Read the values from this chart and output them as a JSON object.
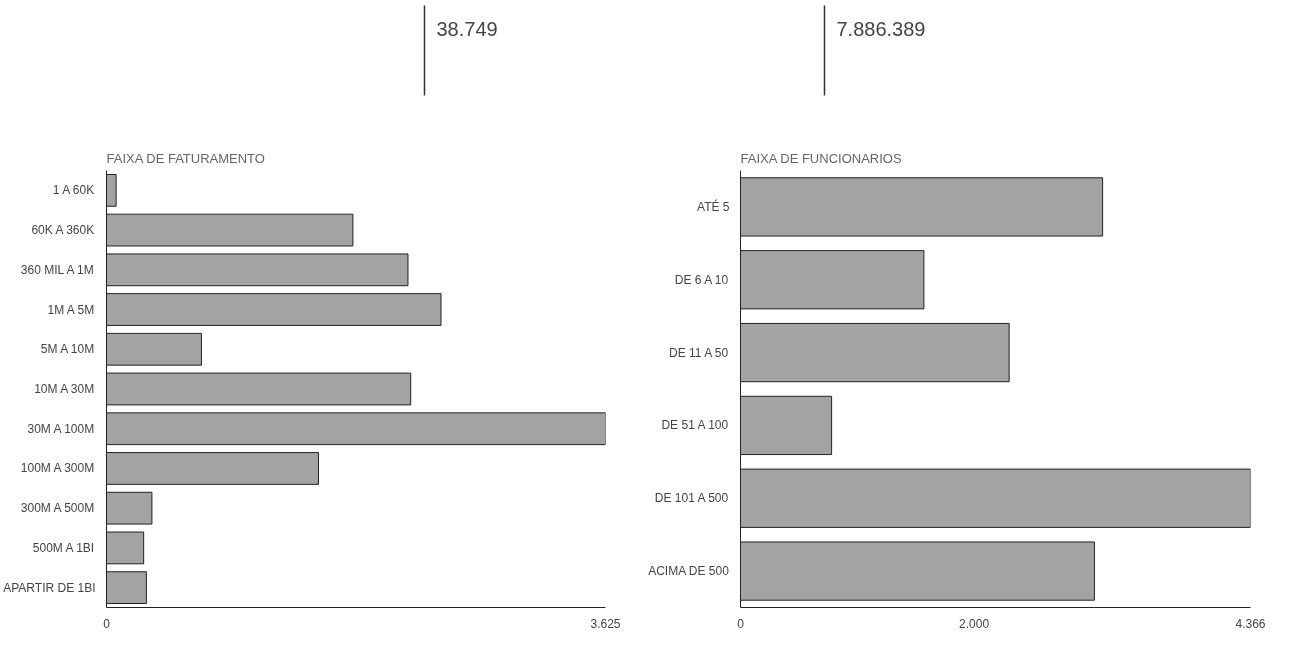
{
  "chart_data": [
    {
      "type": "other",
      "annotations": [
        "38.749"
      ]
    },
    {
      "type": "other",
      "annotations": [
        "7.886.389"
      ]
    },
    {
      "type": "bar",
      "orientation": "horizontal",
      "title": "FAIXA DE FATURAMENTO",
      "categories": [
        "1 A 60K",
        "60K A 360K",
        "360 MIL A 1M",
        "1M A 5M",
        "5M A 10M",
        "10M A 30M",
        "30M A 100M",
        "100M A 300M",
        "300M A 500M",
        "500M A 1BI",
        "APARTIR DE 1BI"
      ],
      "values": [
        70,
        1790,
        2190,
        2430,
        690,
        2210,
        3625,
        1540,
        330,
        270,
        290
      ],
      "color": "#a3a3a3",
      "xlim": [
        0,
        3625
      ],
      "xticks": [
        0,
        {
          "value": 3625,
          "label": "3.625"
        }
      ],
      "grid": false
    },
    {
      "type": "bar",
      "orientation": "horizontal",
      "title": "FAIXA DE FUNCIONARIOS",
      "categories": [
        "ATÉ 5",
        "DE 6 A 10",
        "DE 11 A 50",
        "DE 51 A 100",
        "DE 101 A 500",
        "ACIMA DE 500"
      ],
      "values": [
        3100,
        1570,
        2300,
        780,
        4366,
        3030
      ],
      "color": "#a3a3a3",
      "xlim": [
        0,
        4366
      ],
      "xticks": [
        0,
        {
          "value": 2000,
          "label": "2.000"
        },
        {
          "value": 4366,
          "label": "4.366"
        }
      ],
      "grid": false
    }
  ]
}
